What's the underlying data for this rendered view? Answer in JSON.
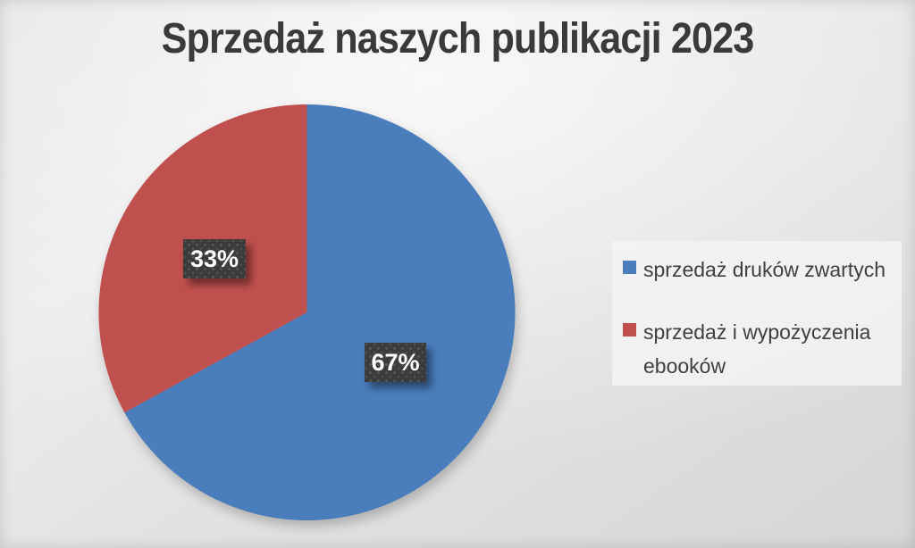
{
  "title": {
    "text": "Sprzedaż naszych publikacji 2023",
    "color": "#3a3a3a"
  },
  "chart_data": {
    "type": "pie",
    "title": "Sprzedaż naszych publikacji 2023",
    "slices": [
      {
        "label": "sprzedaż druków zwartych",
        "value": 67,
        "percent_label": "67%",
        "color": "#4a7dbc"
      },
      {
        "label": "sprzedaż i wypożyczenia ebooków",
        "value": 33,
        "percent_label": "33%",
        "color": "#c0504d"
      }
    ],
    "start_angle_deg": 0,
    "direction": "clockwise",
    "legend_position": "right",
    "data_label_box_color": "#3b3b3b",
    "data_label_text_color": "#ffffff"
  }
}
